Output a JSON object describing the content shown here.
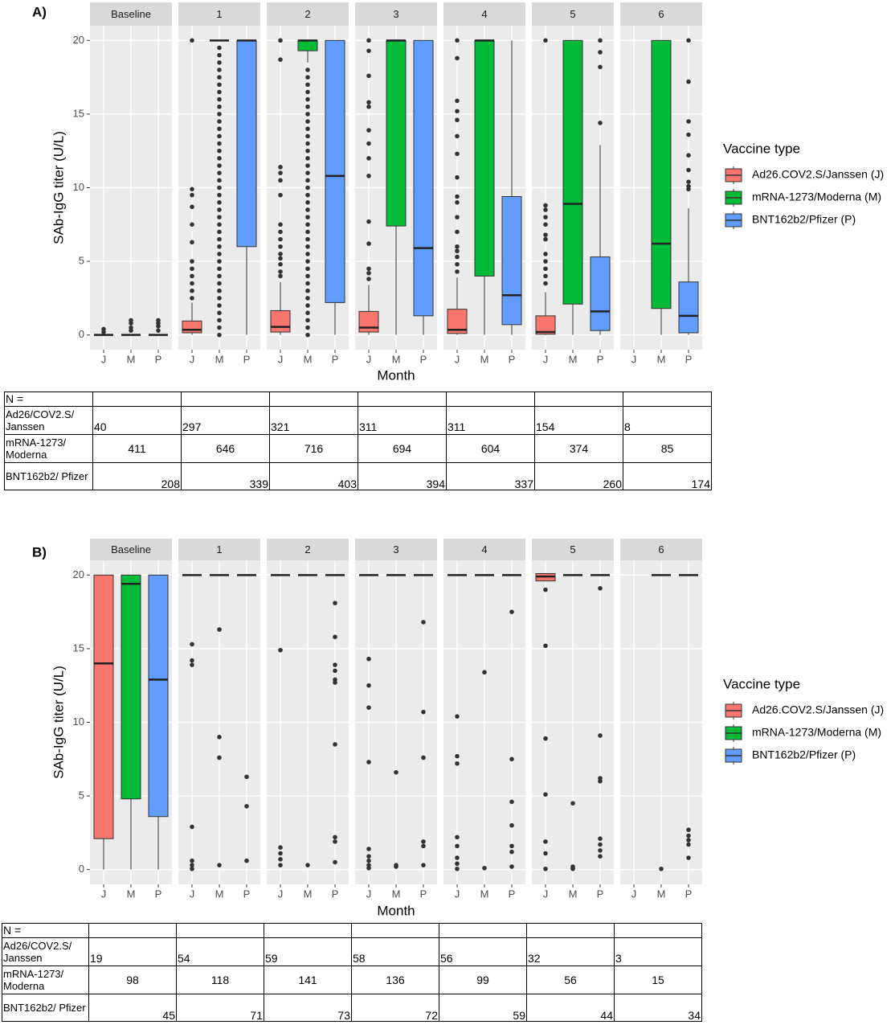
{
  "chart_data": [
    {
      "type": "box",
      "panel_label": "A)",
      "ylabel": "SAb-IgG titer (U/L)",
      "xlabel": "Month",
      "facets": [
        "Baseline",
        "1",
        "2",
        "3",
        "4",
        "5",
        "6"
      ],
      "categories": [
        "J",
        "M",
        "P"
      ],
      "ylim": [
        -1,
        21
      ],
      "yticks": [
        0,
        5,
        10,
        15,
        20
      ],
      "grid": true,
      "legend_title": "Vaccine type",
      "series": [
        {
          "name": "Ad26.COV2.S/Janssen (J)",
          "color": "#f8766d",
          "boxes": [
            {
              "min": 0,
              "q1": 0,
              "median": 0,
              "q3": 0,
              "max": 0,
              "outliers": [
                0.2,
                0.4
              ]
            },
            {
              "min": 0,
              "q1": 0.15,
              "median": 0.35,
              "q3": 0.95,
              "max": 2.2,
              "outliers": [
                2.5,
                3,
                3.5,
                4,
                4.5,
                5,
                6.3,
                7.5,
                8.7,
                9.5,
                9.9,
                20
              ]
            },
            {
              "min": 0,
              "q1": 0.2,
              "median": 0.55,
              "q3": 1.65,
              "max": 3.6,
              "outliers": [
                4,
                4.3,
                4.8,
                5.2,
                5.5,
                6,
                6.5,
                7,
                7.5,
                9.5,
                10.5,
                11,
                11.4,
                18.7,
                20
              ]
            },
            {
              "min": 0,
              "q1": 0.2,
              "median": 0.5,
              "q3": 1.6,
              "max": 3.4,
              "outliers": [
                3.8,
                4.2,
                4.5,
                6.2,
                7.7,
                10.8,
                12,
                13,
                13.9,
                15.5,
                15.8,
                17.6,
                19.3,
                20
              ]
            },
            {
              "min": 0,
              "q1": 0.1,
              "median": 0.35,
              "q3": 1.75,
              "max": 3.9,
              "outliers": [
                4.3,
                4.8,
                5.3,
                5.7,
                6,
                7,
                8,
                9,
                9.4,
                10.7,
                12.3,
                13.5,
                14.6,
                15.2,
                15.9,
                18.8,
                20
              ]
            },
            {
              "min": 0,
              "q1": 0.05,
              "median": 0.2,
              "q3": 1.3,
              "max": 2.9,
              "outliers": [
                3.5,
                4,
                4.5,
                5,
                5.5,
                6.5,
                6.8,
                7.5,
                8,
                8.5,
                8.8,
                20
              ]
            },
            null
          ]
        },
        {
          "name": "mRNA-1273/Moderna (M)",
          "color": "#00ba38",
          "boxes": [
            {
              "min": 0,
              "q1": 0,
              "median": 0,
              "q3": 0,
              "max": 0,
              "outliers": [
                0.3,
                0.5,
                0.8,
                1
              ]
            },
            {
              "min": 20,
              "q1": 20,
              "median": 20,
              "q3": 20,
              "max": 20,
              "outliers": [
                0,
                0.5,
                1,
                1.5,
                2,
                2.5,
                3,
                3.5,
                4,
                4.5,
                5,
                5.5,
                6,
                6.5,
                7,
                7.5,
                8,
                8.5,
                9,
                9.5,
                10,
                10.5,
                11,
                11.5,
                12,
                12.5,
                13,
                13.5,
                14,
                14.5,
                15,
                15.5,
                16,
                16.5,
                17,
                17.5,
                18,
                18.5,
                19,
                19.5
              ]
            },
            {
              "min": 18.5,
              "q1": 19.3,
              "median": 20,
              "q3": 20,
              "max": 20,
              "outliers": [
                0,
                0.5,
                1,
                1.5,
                2,
                2.5,
                3,
                3.5,
                4,
                4.5,
                5,
                5.5,
                6,
                6.5,
                7,
                7.5,
                8,
                8.5,
                9,
                9.5,
                10,
                10.5,
                11,
                11.5,
                12,
                12.5,
                13,
                13.5,
                14,
                14.5,
                15,
                15.5,
                16,
                16.5,
                17,
                17.5,
                18
              ]
            },
            {
              "min": 0,
              "q1": 7.4,
              "median": 20,
              "q3": 20,
              "max": 20,
              "outliers": []
            },
            {
              "min": 0,
              "q1": 4,
              "median": 20,
              "q3": 20,
              "max": 20,
              "outliers": []
            },
            {
              "min": 0,
              "q1": 2.1,
              "median": 8.9,
              "q3": 20,
              "max": 20,
              "outliers": []
            },
            {
              "min": 0,
              "q1": 1.8,
              "median": 6.2,
              "q3": 20,
              "max": 20,
              "outliers": []
            }
          ]
        },
        {
          "name": "BNT162b2/Pfizer (P)",
          "color": "#619cff",
          "boxes": [
            {
              "min": 0,
              "q1": 0,
              "median": 0,
              "q3": 0,
              "max": 0,
              "outliers": [
                0.3,
                0.6,
                0.8,
                1
              ]
            },
            {
              "min": 0,
              "q1": 6,
              "median": 20,
              "q3": 20,
              "max": 20,
              "outliers": []
            },
            {
              "min": 0,
              "q1": 2.2,
              "median": 10.8,
              "q3": 20,
              "max": 20,
              "outliers": []
            },
            {
              "min": 0,
              "q1": 1.3,
              "median": 5.9,
              "q3": 20,
              "max": 20,
              "outliers": []
            },
            {
              "min": 0,
              "q1": 0.7,
              "median": 2.7,
              "q3": 9.4,
              "max": 20,
              "outliers": []
            },
            {
              "min": 0,
              "q1": 0.3,
              "median": 1.6,
              "q3": 5.3,
              "max": 12.9,
              "outliers": [
                14.4,
                18.2,
                19.2,
                20
              ]
            },
            {
              "min": 0,
              "q1": 0.15,
              "median": 1.3,
              "q3": 3.6,
              "max": 8.6,
              "outliers": [
                9.9,
                10.1,
                10.4,
                11.2,
                12.2,
                13.6,
                14.5,
                17.2,
                20
              ]
            }
          ]
        }
      ],
      "table": {
        "header": "N =",
        "rows": [
          {
            "label": "Ad26/COV2.S/ Janssen",
            "values": [
              40,
              297,
              321,
              311,
              311,
              154,
              8
            ]
          },
          {
            "label": "mRNA-1273/ Moderna",
            "values": [
              411,
              646,
              716,
              694,
              604,
              374,
              85
            ]
          },
          {
            "label": "BNT162b2/ Pfizer",
            "values": [
              208,
              339,
              403,
              394,
              337,
              260,
              174
            ]
          }
        ]
      }
    },
    {
      "type": "box",
      "panel_label": "B)",
      "ylabel": "SAb-IgG titer (U/L)",
      "xlabel": "Month",
      "facets": [
        "Baseline",
        "1",
        "2",
        "3",
        "4",
        "5",
        "6"
      ],
      "categories": [
        "J",
        "M",
        "P"
      ],
      "ylim": [
        -1,
        21
      ],
      "yticks": [
        0,
        5,
        10,
        15,
        20
      ],
      "grid": true,
      "legend_title": "Vaccine type",
      "series": [
        {
          "name": "Ad26.COV2.S/Janssen (J)",
          "color": "#f8766d",
          "boxes": [
            {
              "min": 0,
              "q1": 2.1,
              "median": 14,
              "q3": 20,
              "max": 20,
              "outliers": []
            },
            {
              "min": 20,
              "q1": 20,
              "median": 20,
              "q3": 20,
              "max": 20,
              "outliers": [
                15.3,
                14.2,
                13.9,
                2.9,
                0.6,
                0.3,
                0.05
              ]
            },
            {
              "min": 20,
              "q1": 20,
              "median": 20,
              "q3": 20,
              "max": 20,
              "outliers": [
                14.9,
                1.5,
                1.1,
                0.7,
                0.3
              ]
            },
            {
              "min": 20,
              "q1": 20,
              "median": 20,
              "q3": 20,
              "max": 20,
              "outliers": [
                14.3,
                12.5,
                11,
                7.3,
                1.4,
                0.9,
                0.6,
                0.3,
                0.1
              ]
            },
            {
              "min": 20,
              "q1": 20,
              "median": 20,
              "q3": 20,
              "max": 20,
              "outliers": [
                10.4,
                7.7,
                7.2,
                2.2,
                1.6,
                0.8,
                0.4,
                0.05
              ]
            },
            {
              "min": 19.6,
              "q1": 19.6,
              "median": 19.9,
              "q3": 20.1,
              "max": 20.1,
              "outliers": [
                19,
                15.2,
                8.9,
                5.1,
                1.9,
                1.1,
                0.05
              ]
            },
            null
          ]
        },
        {
          "name": "mRNA-1273/Moderna (M)",
          "color": "#00ba38",
          "boxes": [
            {
              "min": 0,
              "q1": 4.8,
              "median": 19.4,
              "q3": 20,
              "max": 20,
              "outliers": []
            },
            {
              "min": 20,
              "q1": 20,
              "median": 20,
              "q3": 20,
              "max": 20,
              "outliers": [
                16.3,
                9,
                7.6,
                0.3
              ]
            },
            {
              "min": 20,
              "q1": 20,
              "median": 20,
              "q3": 20,
              "max": 20,
              "outliers": [
                0.3
              ]
            },
            {
              "min": 20,
              "q1": 20,
              "median": 20,
              "q3": 20,
              "max": 20,
              "outliers": [
                6.6,
                0.3,
                0.2
              ]
            },
            {
              "min": 20,
              "q1": 20,
              "median": 20,
              "q3": 20,
              "max": 20,
              "outliers": [
                13.4,
                0.1
              ]
            },
            {
              "min": 20,
              "q1": 20,
              "median": 20,
              "q3": 20,
              "max": 20,
              "outliers": [
                4.5,
                0.2,
                0.1,
                0.05
              ]
            },
            {
              "min": 20,
              "q1": 20,
              "median": 20,
              "q3": 20,
              "max": 20,
              "outliers": [
                0.05
              ]
            }
          ]
        },
        {
          "name": "BNT162b2/Pfizer (P)",
          "color": "#619cff",
          "boxes": [
            {
              "min": 0,
              "q1": 3.6,
              "median": 12.9,
              "q3": 20,
              "max": 20,
              "outliers": []
            },
            {
              "min": 20,
              "q1": 20,
              "median": 20,
              "q3": 20,
              "max": 20,
              "outliers": [
                6.3,
                4.3,
                0.6
              ]
            },
            {
              "min": 20,
              "q1": 20,
              "median": 20,
              "q3": 20,
              "max": 20,
              "outliers": [
                18.1,
                15.8,
                13.9,
                13.5,
                12.9,
                12.7,
                8.5,
                2.2,
                1.9,
                0.5
              ]
            },
            {
              "min": 20,
              "q1": 20,
              "median": 20,
              "q3": 20,
              "max": 20,
              "outliers": [
                16.8,
                10.7,
                7.6,
                1.9,
                1.6,
                0.3
              ]
            },
            {
              "min": 20,
              "q1": 20,
              "median": 20,
              "q3": 20,
              "max": 20,
              "outliers": [
                17.5,
                7.5,
                4.6,
                3,
                1.6,
                1.2,
                0.2
              ]
            },
            {
              "min": 20,
              "q1": 20,
              "median": 20,
              "q3": 20,
              "max": 20,
              "outliers": [
                19.1,
                9.1,
                6.2,
                6,
                2.1,
                1.7,
                1.3,
                0.9
              ]
            },
            {
              "min": 20,
              "q1": 20,
              "median": 20,
              "q3": 20,
              "max": 20,
              "outliers": [
                2.7,
                2.3,
                2,
                1.7,
                0.8
              ]
            }
          ]
        }
      ],
      "table": {
        "header": "N =",
        "rows": [
          {
            "label": "Ad26/COV2.S/ Janssen",
            "values": [
              19,
              54,
              59,
              58,
              56,
              32,
              3
            ]
          },
          {
            "label": "mRNA-1273/ Moderna",
            "values": [
              98,
              118,
              141,
              136,
              99,
              56,
              15
            ]
          },
          {
            "label": "BNT162b2/ Pfizer",
            "values": [
              45,
              71,
              73,
              72,
              59,
              44,
              34
            ]
          }
        ]
      }
    }
  ]
}
